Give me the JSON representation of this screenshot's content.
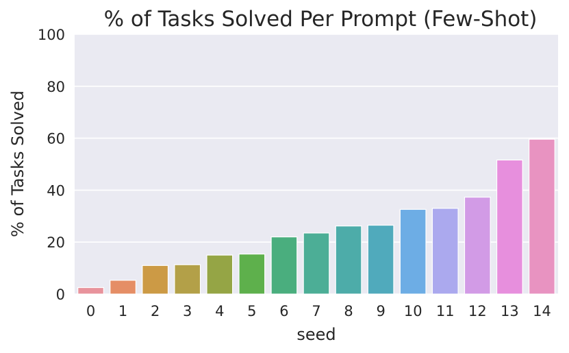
{
  "chart_data": {
    "type": "bar",
    "title": "% of Tasks Solved Per Prompt (Few-Shot)",
    "xlabel": "seed",
    "ylabel": "% of Tasks Solved",
    "categories": [
      "0",
      "1",
      "2",
      "3",
      "4",
      "5",
      "6",
      "7",
      "8",
      "9",
      "10",
      "11",
      "12",
      "13",
      "14"
    ],
    "values": [
      2.5,
      5.3,
      11.0,
      11.3,
      15.0,
      15.4,
      22.0,
      23.5,
      26.2,
      26.5,
      32.6,
      33.0,
      37.3,
      51.6,
      59.6
    ],
    "ylim": [
      0,
      100
    ],
    "yticks": [
      "0",
      "20",
      "40",
      "60",
      "80",
      "100"
    ],
    "grid": true,
    "background_color": "#EAEAF2",
    "bar_colors": [
      "#E8939C",
      "#E58E66",
      "#CC9A45",
      "#B3A048",
      "#95A545",
      "#5EB04C",
      "#4AAE7E",
      "#4CAE96",
      "#4DACA9",
      "#50AABC",
      "#6DADE5",
      "#ABA9EE",
      "#D29BE6",
      "#E78FDD",
      "#E893C1"
    ]
  }
}
